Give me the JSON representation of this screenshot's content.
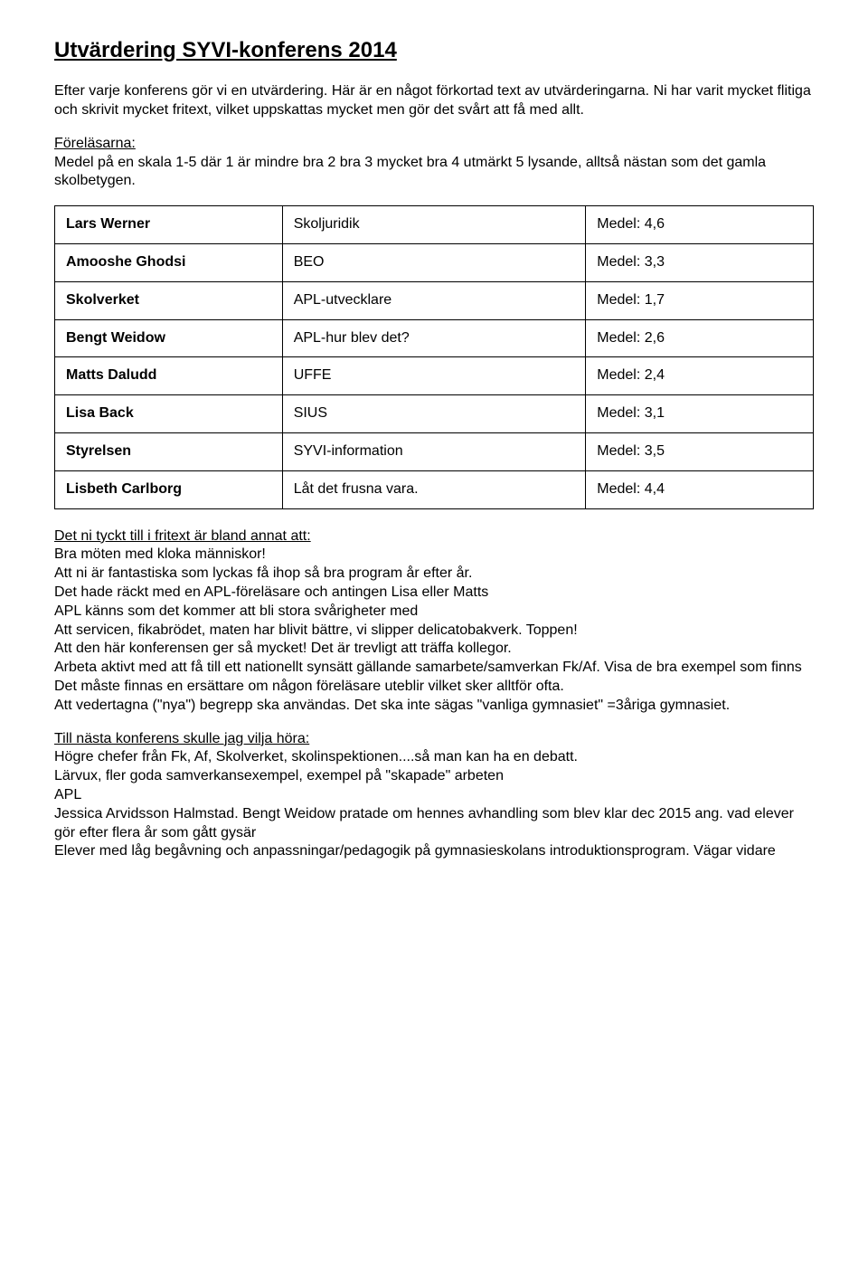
{
  "title": "Utvärdering SYVI-konferens 2014",
  "intro1": "Efter varje konferens gör vi en utvärdering. Här är en något förkortad text av utvärderingarna. Ni har varit mycket flitiga och skrivit mycket fritext, vilket uppskattas mycket men gör det svårt att få med allt.",
  "forelasarna_label": "Föreläsarna:",
  "forelasarna_text": "Medel på en skala 1-5 där 1 är mindre bra 2 bra 3 mycket bra 4 utmärkt 5 lysande, alltså nästan som det gamla skolbetygen.",
  "table": {
    "rows": [
      {
        "name": "Lars Werner",
        "topic": "Skoljuridik",
        "score": "Medel: 4,6"
      },
      {
        "name": "Amooshe Ghodsi",
        "topic": "BEO",
        "score": "Medel: 3,3"
      },
      {
        "name": "Skolverket",
        "topic": "APL-utvecklare",
        "score": "Medel: 1,7"
      },
      {
        "name": "Bengt Weidow",
        "topic": "APL-hur blev det?",
        "score": "Medel: 2,6"
      },
      {
        "name": "Matts Daludd",
        "topic": "UFFE",
        "score": "Medel: 2,4"
      },
      {
        "name": "Lisa Back",
        "topic": "SIUS",
        "score": "Medel: 3,1"
      },
      {
        "name": "Styrelsen",
        "topic": "SYVI-information",
        "score": "Medel: 3,5"
      },
      {
        "name": "Lisbeth Carlborg",
        "topic": "Låt det frusna vara.",
        "score": "Medel: 4,4"
      }
    ]
  },
  "fritext_heading": "Det ni tyckt till i fritext är bland annat att:",
  "fritext_lines": [
    "Bra möten med kloka människor!",
    "Att ni är fantastiska som lyckas få ihop så bra program år efter år.",
    "Det hade räckt med en APL-föreläsare och antingen Lisa eller Matts",
    "APL känns som det kommer att bli stora svårigheter med",
    "Att servicen, fikabrödet, maten har blivit bättre, vi slipper delicatobakverk. Toppen!",
    "Att den här konferensen ger så mycket! Det är trevligt att träffa kollegor.",
    "Arbeta aktivt med att få till ett nationellt synsätt gällande samarbete/samverkan Fk/Af. Visa de bra exempel som finns",
    "Det måste finnas en ersättare om någon föreläsare uteblir vilket sker alltför ofta.",
    "Att vedertagna (\"nya\") begrepp ska användas. Det ska inte sägas \"vanliga gymnasiet\" =3åriga gymnasiet."
  ],
  "nasta_heading": "Till nästa konferens skulle jag vilja höra:",
  "nasta_lines": [
    "Högre chefer från Fk, Af, Skolverket, skolinspektionen....så man kan ha en debatt.",
    "Lärvux, fler goda samverkansexempel, exempel på \"skapade\" arbeten",
    "APL",
    "Jessica Arvidsson Halmstad. Bengt Weidow pratade om hennes avhandling som blev klar dec 2015 ang. vad elever gör efter flera år som gått gysär",
    "Elever med låg begåvning och anpassningar/pedagogik på gymnasieskolans introduktionsprogram. Vägar vidare"
  ]
}
